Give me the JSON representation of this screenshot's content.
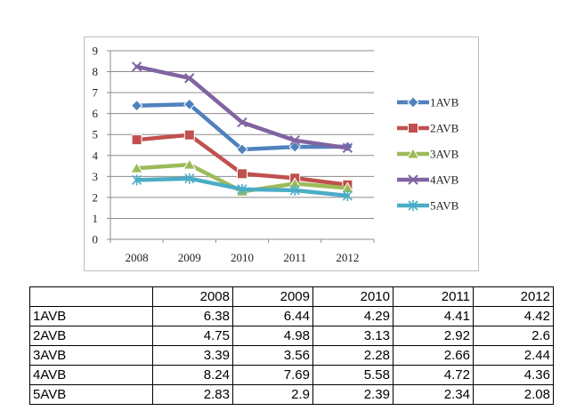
{
  "chart_data": {
    "type": "line",
    "x": [
      "2008",
      "2009",
      "2010",
      "2011",
      "2012"
    ],
    "ylim": [
      0,
      9
    ],
    "yticks": [
      "0",
      "1",
      "2",
      "3",
      "4",
      "5",
      "6",
      "7",
      "8",
      "9"
    ],
    "grid": true,
    "legend_position": "right",
    "series": [
      {
        "name": "1AVB",
        "values": [
          6.38,
          6.44,
          4.29,
          4.41,
          4.42
        ],
        "color": "#4f81bd",
        "marker": "diamond"
      },
      {
        "name": "2AVB",
        "values": [
          4.75,
          4.98,
          3.13,
          2.92,
          2.6
        ],
        "color": "#c0504d",
        "marker": "square"
      },
      {
        "name": "3AVB",
        "values": [
          3.39,
          3.56,
          2.28,
          2.66,
          2.44
        ],
        "color": "#9bbb59",
        "marker": "triangle"
      },
      {
        "name": "4AVB",
        "values": [
          8.24,
          7.69,
          5.58,
          4.72,
          4.36
        ],
        "color": "#8064a2",
        "marker": "x"
      },
      {
        "name": "5AVB",
        "values": [
          2.83,
          2.9,
          2.39,
          2.34,
          2.08
        ],
        "color": "#4bacc6",
        "marker": "star"
      }
    ]
  },
  "table": {
    "header": [
      "",
      "2008",
      "2009",
      "2010",
      "2011",
      "2012"
    ],
    "rows": [
      [
        "1AVB",
        "6.38",
        "6.44",
        "4.29",
        "4.41",
        "4.42"
      ],
      [
        "2AVB",
        "4.75",
        "4.98",
        "3.13",
        "2.92",
        "2.6"
      ],
      [
        "3AVB",
        "3.39",
        "3.56",
        "2.28",
        "2.66",
        "2.44"
      ],
      [
        "4AVB",
        "8.24",
        "7.69",
        "5.58",
        "4.72",
        "4.36"
      ],
      [
        "5AVB",
        "2.83",
        "2.9",
        "2.39",
        "2.34",
        "2.08"
      ]
    ]
  }
}
